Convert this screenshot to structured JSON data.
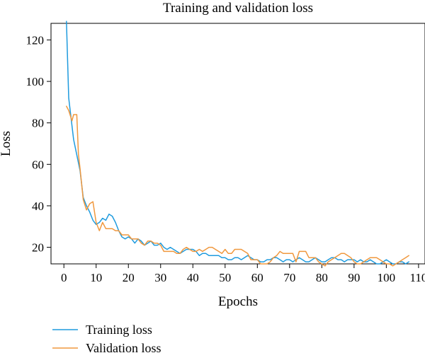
{
  "chart_data": {
    "type": "line",
    "title": "Training and validation loss",
    "xlabel": "Epochs",
    "ylabel": "Loss",
    "xlim": [
      -4,
      112
    ],
    "ylim": [
      12,
      128
    ],
    "xticks": [
      0,
      10,
      20,
      30,
      40,
      50,
      60,
      70,
      80,
      90,
      100,
      110
    ],
    "yticks": [
      20,
      40,
      60,
      80,
      100,
      120
    ],
    "grid": false,
    "legend_position": "bottom-left",
    "series": [
      {
        "name": "Training loss",
        "color": "#1f9bde",
        "points": [
          [
            0.8,
            129
          ],
          [
            1.5,
            92
          ],
          [
            3,
            72
          ],
          [
            5,
            57
          ],
          [
            6,
            44
          ],
          [
            7,
            40
          ],
          [
            8,
            37
          ],
          [
            9,
            33
          ],
          [
            10,
            31
          ],
          [
            11,
            32
          ],
          [
            12,
            34
          ],
          [
            13,
            33
          ],
          [
            14,
            36
          ],
          [
            15,
            35
          ],
          [
            16,
            32
          ],
          [
            17,
            28
          ],
          [
            18,
            25
          ],
          [
            19,
            24
          ],
          [
            20,
            25
          ],
          [
            21,
            24
          ],
          [
            22,
            22
          ],
          [
            23,
            24
          ],
          [
            24,
            23
          ],
          [
            25,
            21
          ],
          [
            26,
            22
          ],
          [
            27,
            23
          ],
          [
            28,
            21
          ],
          [
            29,
            21
          ],
          [
            30,
            22
          ],
          [
            31,
            20
          ],
          [
            32,
            19
          ],
          [
            33,
            20
          ],
          [
            34,
            19
          ],
          [
            35,
            18
          ],
          [
            36,
            17
          ],
          [
            37,
            18
          ],
          [
            38,
            19
          ],
          [
            39,
            19
          ],
          [
            40,
            19
          ],
          [
            41,
            18
          ],
          [
            42,
            16
          ],
          [
            43,
            17
          ],
          [
            44,
            17
          ],
          [
            45,
            16
          ],
          [
            46,
            16
          ],
          [
            47,
            16
          ],
          [
            48,
            16
          ],
          [
            49,
            15
          ],
          [
            50,
            15
          ],
          [
            51,
            14
          ],
          [
            52,
            14
          ],
          [
            53,
            15
          ],
          [
            54,
            15
          ],
          [
            55,
            14
          ],
          [
            56,
            15
          ],
          [
            57,
            16
          ],
          [
            58,
            15
          ],
          [
            59,
            14
          ],
          [
            60,
            14
          ],
          [
            61,
            13
          ],
          [
            62,
            13
          ],
          [
            63,
            14
          ],
          [
            64,
            14
          ],
          [
            65,
            15
          ],
          [
            66,
            15
          ],
          [
            67,
            14
          ],
          [
            68,
            13
          ],
          [
            69,
            14
          ],
          [
            70,
            14
          ],
          [
            71,
            13
          ],
          [
            72,
            14
          ],
          [
            73,
            15
          ],
          [
            74,
            14
          ],
          [
            75,
            13
          ],
          [
            76,
            13
          ],
          [
            77,
            14
          ],
          [
            78,
            15
          ],
          [
            79,
            14
          ],
          [
            80,
            13
          ],
          [
            81,
            13
          ],
          [
            82,
            14
          ],
          [
            83,
            15
          ],
          [
            84,
            15
          ],
          [
            85,
            14
          ],
          [
            86,
            14
          ],
          [
            87,
            13
          ],
          [
            88,
            14
          ],
          [
            89,
            14
          ],
          [
            90,
            14
          ],
          [
            91,
            13
          ],
          [
            92,
            14
          ],
          [
            93,
            13
          ],
          [
            94,
            13
          ],
          [
            95,
            14
          ],
          [
            96,
            13
          ],
          [
            97,
            12
          ],
          [
            98,
            12
          ],
          [
            99,
            13
          ],
          [
            100,
            14
          ],
          [
            101,
            13
          ],
          [
            102,
            12
          ],
          [
            103,
            12
          ],
          [
            104,
            13
          ],
          [
            105,
            13
          ],
          [
            106,
            12
          ],
          [
            107,
            13
          ]
        ]
      },
      {
        "name": "Validation loss",
        "color": "#f0983e",
        "points": [
          [
            0.8,
            88
          ],
          [
            1.5,
            86
          ],
          [
            2.5,
            81
          ],
          [
            3,
            84
          ],
          [
            4,
            84
          ],
          [
            4.5,
            65
          ],
          [
            5,
            58
          ],
          [
            6,
            43
          ],
          [
            7,
            38
          ],
          [
            8,
            41
          ],
          [
            9,
            42
          ],
          [
            10,
            32
          ],
          [
            11,
            28
          ],
          [
            12,
            32
          ],
          [
            13,
            29
          ],
          [
            14,
            29
          ],
          [
            15,
            29
          ],
          [
            16,
            28
          ],
          [
            17,
            28
          ],
          [
            18,
            26
          ],
          [
            19,
            26
          ],
          [
            20,
            26
          ],
          [
            21,
            24
          ],
          [
            22,
            24
          ],
          [
            23,
            24
          ],
          [
            24,
            22
          ],
          [
            25,
            21
          ],
          [
            26,
            23
          ],
          [
            27,
            23
          ],
          [
            28,
            22
          ],
          [
            29,
            22
          ],
          [
            30,
            21
          ],
          [
            31,
            18
          ],
          [
            32,
            18
          ],
          [
            33,
            18
          ],
          [
            34,
            18
          ],
          [
            35,
            17
          ],
          [
            36,
            17
          ],
          [
            37,
            19
          ],
          [
            38,
            20
          ],
          [
            39,
            19
          ],
          [
            40,
            18
          ],
          [
            41,
            18
          ],
          [
            42,
            19
          ],
          [
            43,
            18
          ],
          [
            44,
            19
          ],
          [
            45,
            20
          ],
          [
            46,
            20
          ],
          [
            47,
            19
          ],
          [
            48,
            18
          ],
          [
            49,
            17
          ],
          [
            50,
            19
          ],
          [
            51,
            17
          ],
          [
            52,
            17
          ],
          [
            53,
            19
          ],
          [
            54,
            19
          ],
          [
            55,
            19
          ],
          [
            56,
            18
          ],
          [
            57,
            17
          ],
          [
            58,
            14
          ],
          [
            59,
            14
          ],
          [
            60,
            14
          ],
          [
            61,
            12
          ],
          [
            62,
            12
          ],
          [
            63,
            12
          ],
          [
            64,
            13
          ],
          [
            65,
            15
          ],
          [
            66,
            16
          ],
          [
            67,
            18
          ],
          [
            68,
            17
          ],
          [
            69,
            17
          ],
          [
            70,
            17
          ],
          [
            71,
            17
          ],
          [
            72,
            13
          ],
          [
            73,
            18
          ],
          [
            74,
            18
          ],
          [
            75,
            18
          ],
          [
            76,
            15
          ],
          [
            77,
            15
          ],
          [
            78,
            15
          ],
          [
            79,
            13
          ],
          [
            80,
            12
          ],
          [
            81,
            11
          ],
          [
            82,
            13
          ],
          [
            83,
            14
          ],
          [
            84,
            15
          ],
          [
            85,
            16
          ],
          [
            86,
            17
          ],
          [
            87,
            17
          ],
          [
            88,
            16
          ],
          [
            89,
            15
          ],
          [
            90,
            13
          ],
          [
            91,
            12
          ],
          [
            92,
            12
          ],
          [
            93,
            13
          ],
          [
            94,
            14
          ],
          [
            95,
            15
          ],
          [
            96,
            15
          ],
          [
            97,
            15
          ],
          [
            98,
            14
          ],
          [
            99,
            13
          ],
          [
            100,
            12
          ],
          [
            101,
            12
          ],
          [
            102,
            11
          ],
          [
            103,
            12
          ],
          [
            104,
            13
          ],
          [
            105,
            14
          ],
          [
            106,
            15
          ],
          [
            107,
            16
          ]
        ]
      }
    ]
  }
}
